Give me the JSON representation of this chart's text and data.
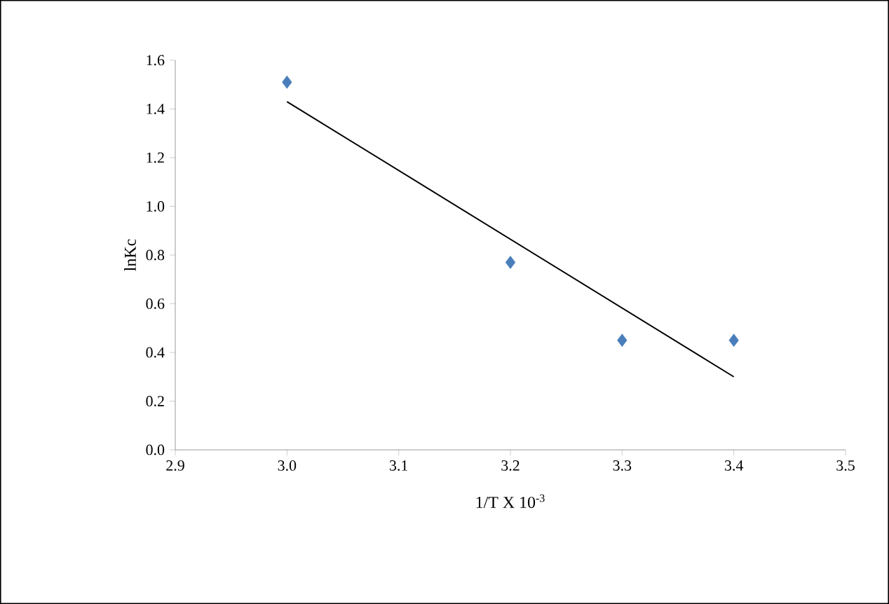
{
  "chart_data": {
    "type": "scatter",
    "xlabel": "1/T X 10$^{-3}$",
    "ylabel": "lnKc",
    "series": [
      {
        "color": "#4a7ebb",
        "marker": "diamond",
        "x": [
          3.0,
          3.2,
          3.3,
          3.4
        ],
        "values": [
          1.51,
          0.77,
          0.45,
          0.45
        ]
      },
      {
        "type": "line",
        "color": "#000000",
        "marker": "none",
        "line_style": "solid",
        "x": [
          3.0,
          3.4
        ],
        "values": [
          1.43,
          0.3
        ]
      }
    ],
    "xlim": [
      2.9,
      3.5
    ],
    "xticks": [
      2.9,
      {
        "value": 3,
        "label": "3.0"
      },
      3.1,
      3.2,
      3.3,
      3.4,
      3.5
    ],
    "ylim": [
      0,
      1.6
    ],
    "yticks": [
      {
        "value": 0,
        "label": "0.0"
      },
      0.2,
      0.4,
      0.6,
      0.8,
      {
        "value": 1,
        "label": "1.0"
      },
      1.2,
      1.4,
      1.6
    ],
    "grid": false
  }
}
